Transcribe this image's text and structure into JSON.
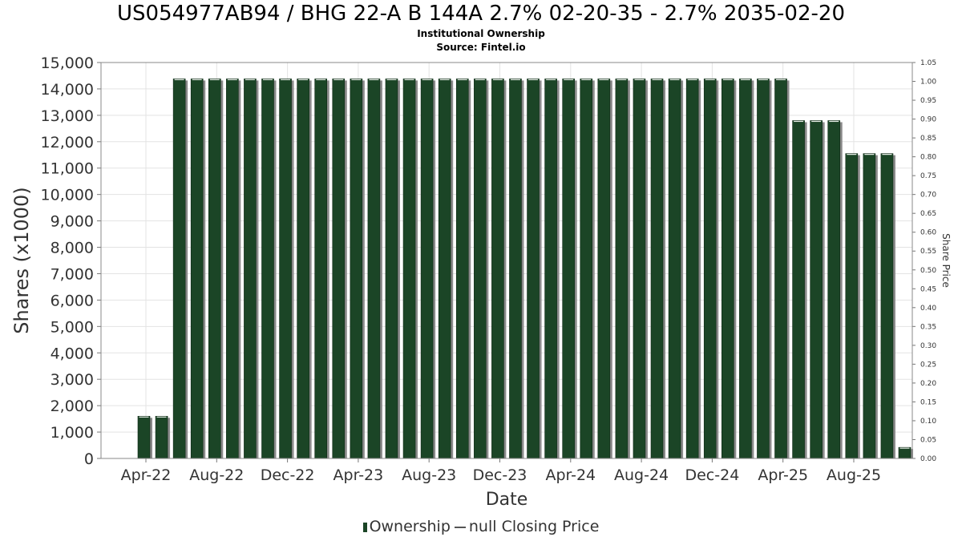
{
  "title": "US054977AB94 / BHG 22-A B 144A 2.7% 02-20-35 - 2.7% 2035-02-20",
  "subtitle": "Institutional Ownership",
  "source": "Source: Fintel.io",
  "legend": {
    "ownership": "Ownership",
    "closing_price": "null Closing Price"
  },
  "colors": {
    "bar": "#1b4526",
    "bar_shadow": "#8a8a8a",
    "grid": "#e3e3e3"
  },
  "chart_data": {
    "type": "bar",
    "xlabel": "Date",
    "ylabel": "Shares (x1000)",
    "y2label": "Share Price",
    "ylim": [
      0,
      15000
    ],
    "y2lim": [
      0,
      1.05
    ],
    "yticks": [
      "0",
      "1,000",
      "2,000",
      "3,000",
      "4,000",
      "5,000",
      "6,000",
      "7,000",
      "8,000",
      "9,000",
      "10,000",
      "11,000",
      "12,000",
      "13,000",
      "14,000",
      "15,000"
    ],
    "y2ticks": [
      "0.00",
      "0.05",
      "0.10",
      "0.15",
      "0.20",
      "0.25",
      "0.30",
      "0.35",
      "0.40",
      "0.45",
      "0.50",
      "0.55",
      "0.60",
      "0.65",
      "0.70",
      "0.75",
      "0.80",
      "0.85",
      "0.90",
      "0.95",
      "1.00",
      "1.05"
    ],
    "xticks": [
      "Apr-22",
      "Aug-22",
      "Dec-22",
      "Apr-23",
      "Aug-23",
      "Dec-23",
      "Apr-24",
      "Aug-24",
      "Dec-24",
      "Apr-25",
      "Aug-25"
    ],
    "grid": true,
    "legend_position": "bottom",
    "series": [
      {
        "name": "Ownership",
        "values": [
          1600,
          1600,
          14380,
          14380,
          14380,
          14380,
          14380,
          14380,
          14380,
          14380,
          14380,
          14380,
          14380,
          14380,
          14380,
          14380,
          14380,
          14380,
          14380,
          14380,
          14380,
          14380,
          14380,
          14380,
          14380,
          14380,
          14380,
          14380,
          14380,
          14380,
          14380,
          14380,
          14380,
          14380,
          14380,
          14380,
          14380,
          12800,
          12800,
          12800,
          11550,
          11550,
          11550,
          420
        ]
      }
    ]
  }
}
